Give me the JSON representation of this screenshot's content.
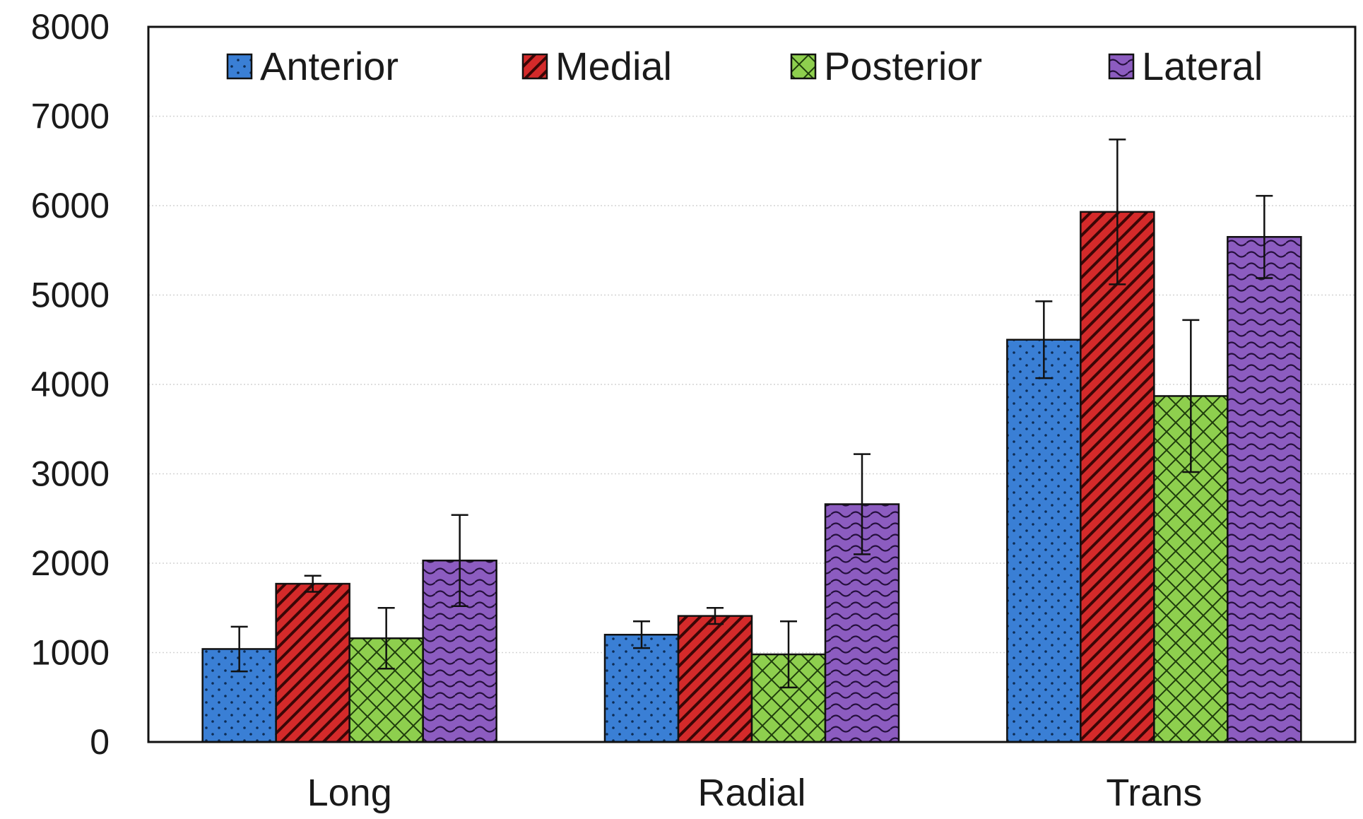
{
  "chart_data": {
    "type": "bar",
    "title": "",
    "xlabel": "",
    "ylabel": "",
    "categories": [
      "Long",
      "Radial",
      "Trans"
    ],
    "ylim": [
      0,
      8000
    ],
    "yticks": [
      "0",
      "1000",
      "2000",
      "3000",
      "4000",
      "5000",
      "6000",
      "7000",
      "8000"
    ],
    "grid": true,
    "legend_position": "top",
    "series": [
      {
        "name": "Anterior",
        "color": "#3a7fd5",
        "pattern": "dots",
        "values": [
          1040,
          1200,
          4500
        ],
        "errors": [
          250,
          150,
          430
        ]
      },
      {
        "name": "Medial",
        "color": "#d42a2a",
        "pattern": "diagonal-stripes",
        "values": [
          1770,
          1410,
          5930
        ],
        "errors": [
          90,
          90,
          810
        ]
      },
      {
        "name": "Posterior",
        "color": "#8ecf4e",
        "pattern": "crosshatch",
        "values": [
          1160,
          980,
          3870
        ],
        "errors": [
          340,
          370,
          850
        ]
      },
      {
        "name": "Lateral",
        "color": "#8c5cc0",
        "pattern": "waves",
        "values": [
          2030,
          2660,
          5650
        ],
        "errors": [
          510,
          560,
          460
        ]
      }
    ]
  }
}
